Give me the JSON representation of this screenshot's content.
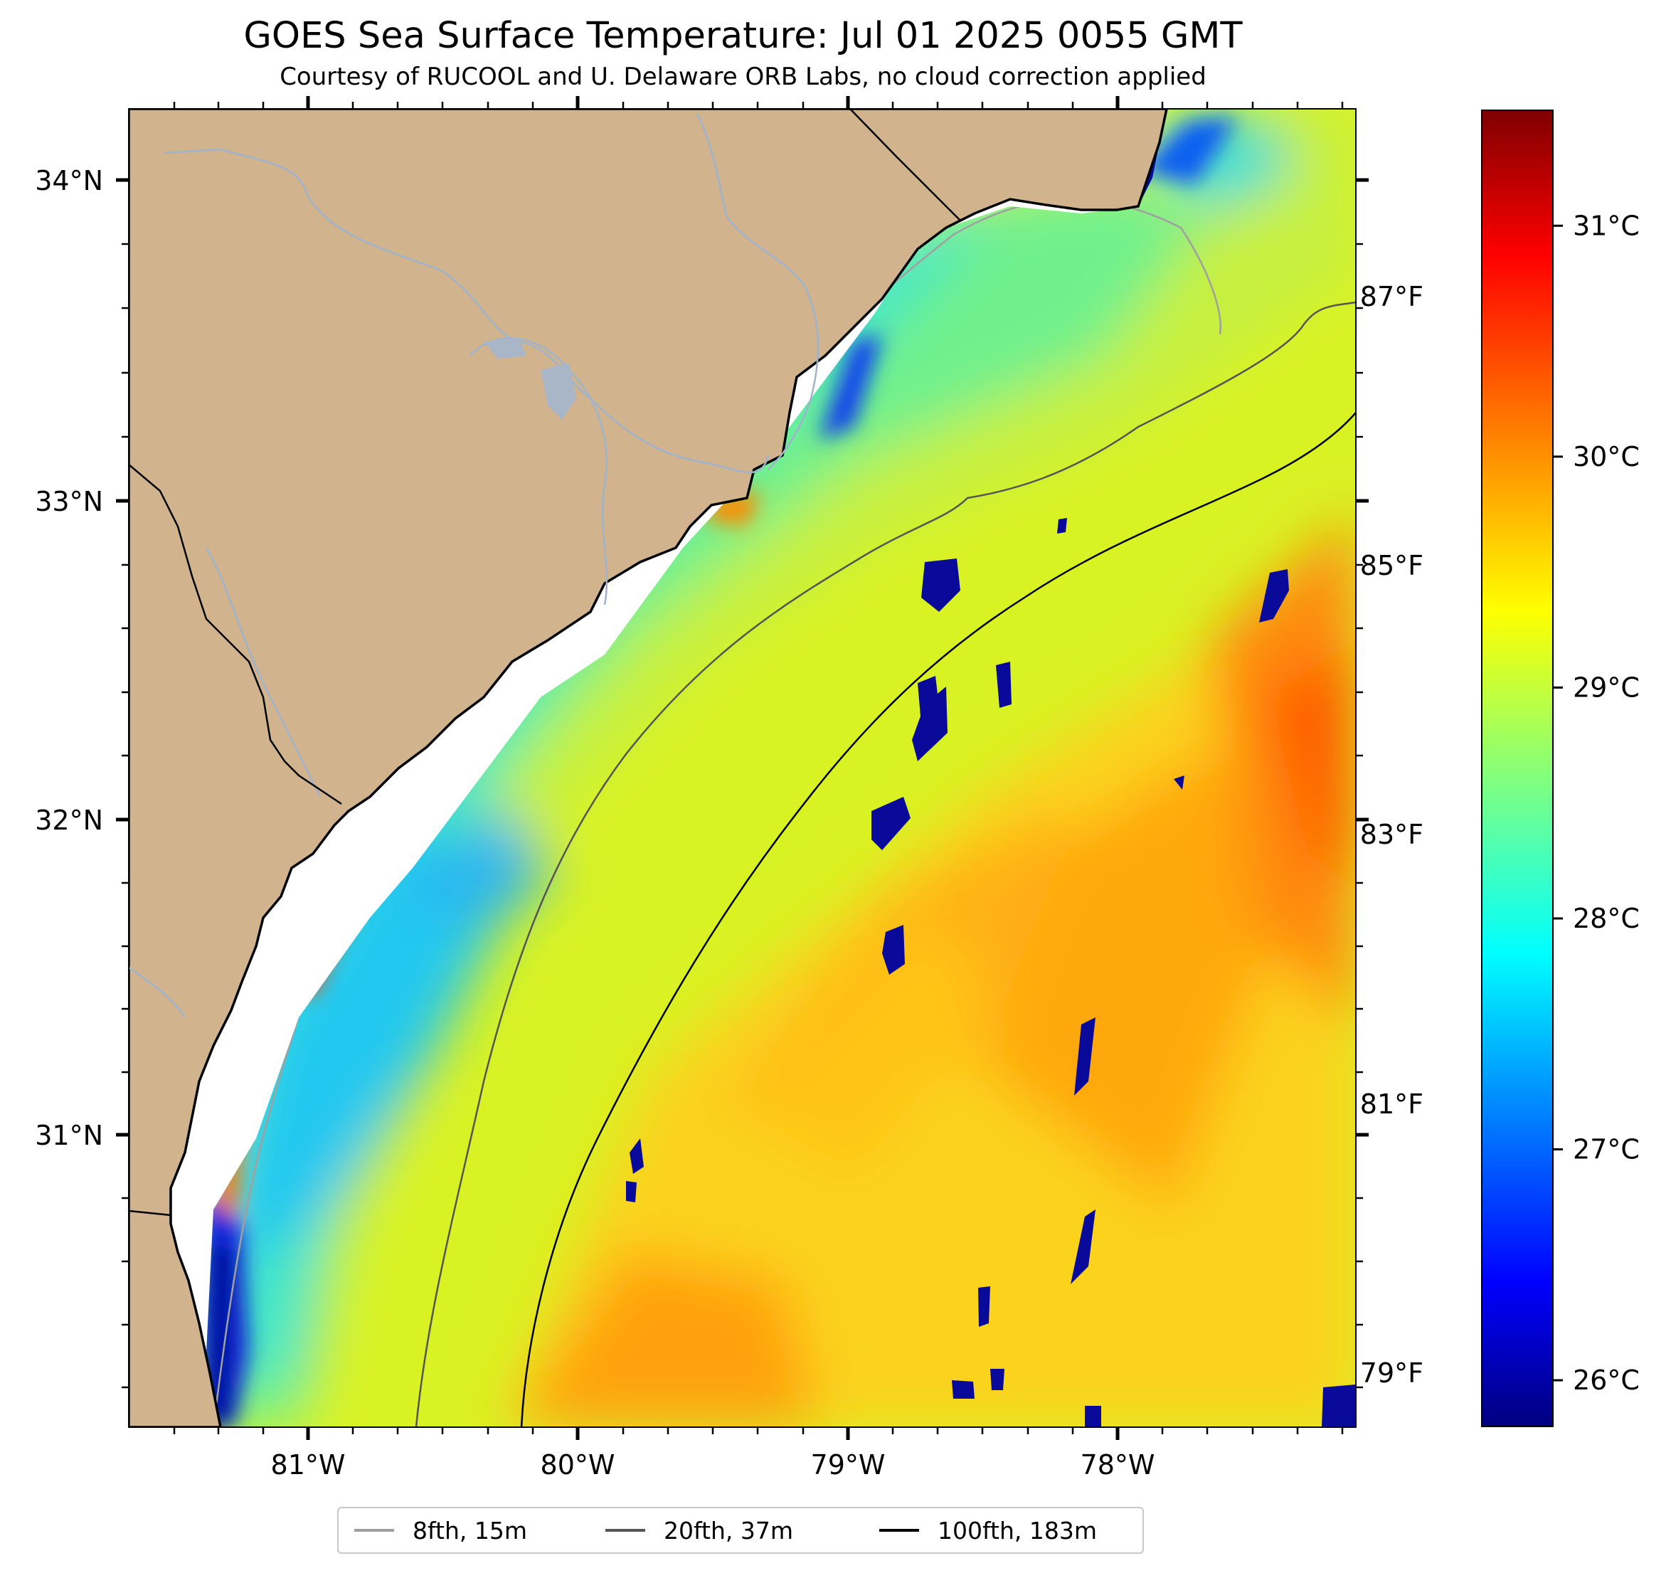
{
  "title": "GOES Sea Surface Temperature: Jul 01 2025 0055 GMT",
  "subtitle": "Courtesy of RUCOOL and U. Delaware ORB Labs, no cloud correction applied",
  "lat_labels": [
    "34°N",
    "33°N",
    "32°N",
    "31°N"
  ],
  "lon_labels": [
    "81°W",
    "80°W",
    "79°W",
    "78°W"
  ],
  "fahrenheit_labels": [
    "87°F",
    "85°F",
    "83°F",
    "81°F",
    "79°F"
  ],
  "colorbar": {
    "celsius_labels": [
      "31°C",
      "30°C",
      "29°C",
      "28°C",
      "27°C",
      "26°C"
    ],
    "min_c": 25.8,
    "max_c": 31.5,
    "colormap": "jet"
  },
  "legend": [
    {
      "label": "8fth, 15m",
      "color": "#a0a0a0"
    },
    {
      "label": "20fth, 37m",
      "color": "#555555"
    },
    {
      "label": "100fth, 183m",
      "color": "#000000"
    }
  ],
  "colors": {
    "land": "#d1b38d",
    "rivers": "#9fb4cc",
    "coast": "#000000",
    "no_data": "#ffffff"
  }
}
